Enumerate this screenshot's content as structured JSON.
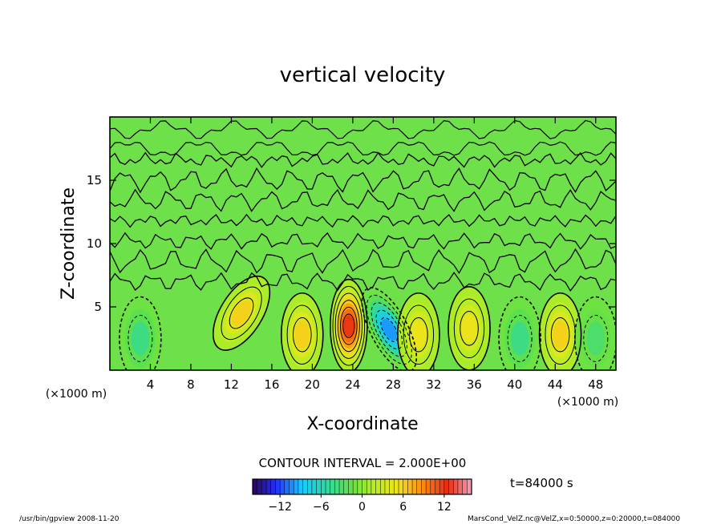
{
  "chart_data": {
    "type": "heatmap",
    "title": "vertical velocity",
    "xlabel": "X-coordinate",
    "ylabel": "Z-coordinate",
    "x_unit_left": "(×1000 m)",
    "x_unit_right": "(×1000 m)",
    "xlim": [
      0,
      50
    ],
    "ylim": [
      0,
      20
    ],
    "x_ticks": [
      "4",
      "8",
      "12",
      "16",
      "20",
      "24",
      "28",
      "32",
      "36",
      "40",
      "44",
      "48"
    ],
    "x_tick_values": [
      4,
      8,
      12,
      16,
      20,
      24,
      28,
      32,
      36,
      40,
      44,
      48
    ],
    "y_ticks": [
      "5",
      "10",
      "15"
    ],
    "y_tick_values": [
      5,
      10,
      15
    ],
    "contour_interval_text": "CONTOUR INTERVAL = 2.000E+00",
    "time_text": "t=84000 s",
    "colorbar": {
      "range": [
        -16,
        16
      ],
      "tick_labels": [
        "−12",
        "−6",
        "0",
        "6",
        "12"
      ],
      "tick_values": [
        -12,
        -6,
        0,
        6,
        12
      ],
      "palette": [
        "#2a0060",
        "#2233ff",
        "#19c8ff",
        "#2ad8a8",
        "#5ee04a",
        "#b9ee22",
        "#f2e21a",
        "#ff8a12",
        "#e82c12",
        "#f5a0b8"
      ]
    },
    "features": [
      {
        "x": 23.6,
        "z": 3.5,
        "value": 12,
        "sign": "updraft"
      },
      {
        "x": 27.6,
        "z": 3.2,
        "value": -10,
        "sign": "downdraft"
      },
      {
        "x": 13.0,
        "z": 4.5,
        "value": 6,
        "sign": "updraft"
      },
      {
        "x": 19.0,
        "z": 2.8,
        "value": 6,
        "sign": "updraft"
      },
      {
        "x": 30.5,
        "z": 2.8,
        "value": 5,
        "sign": "updraft"
      },
      {
        "x": 35.5,
        "z": 3.3,
        "value": 5,
        "sign": "updraft"
      },
      {
        "x": 44.5,
        "z": 2.8,
        "value": 6,
        "sign": "updraft"
      },
      {
        "x": 3.0,
        "z": 2.5,
        "value": -4,
        "sign": "downdraft"
      },
      {
        "x": 40.5,
        "z": 2.5,
        "value": -4,
        "sign": "downdraft"
      },
      {
        "x": 48.0,
        "z": 2.5,
        "value": -3,
        "sign": "downdraft"
      }
    ]
  },
  "footer": {
    "left": "/usr/bin/gpview  2008-11-20",
    "right": "MarsCond_VelZ.nc@VelZ,x=0:50000,z=0:20000,t=084000"
  }
}
